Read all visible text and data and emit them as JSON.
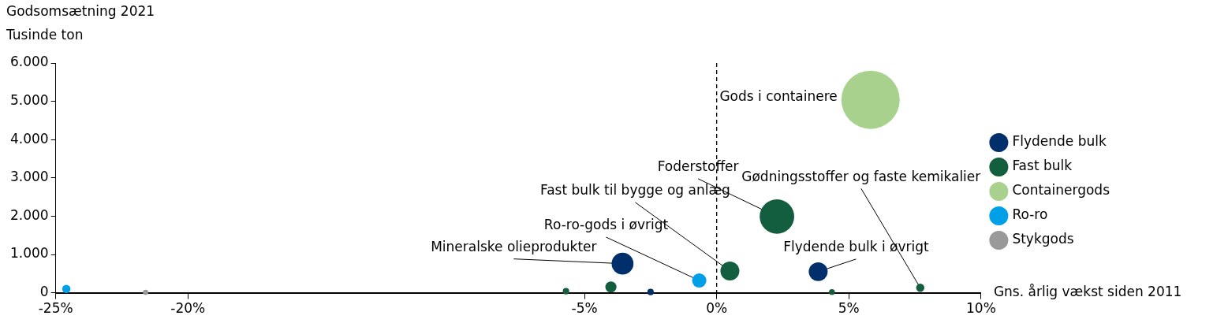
{
  "chart_data": {
    "type": "bubble",
    "title": "Godsomsætning 2021",
    "ylabel": "Tusinde ton",
    "xlabel": "Gns. årlig vækst siden 2011",
    "xlim": [
      -25,
      10
    ],
    "xticks": [
      {
        "value": -25,
        "label": "-25%"
      },
      {
        "value": -20,
        "label": "-20%"
      },
      {
        "value": -5,
        "label": "-5%"
      },
      {
        "value": 0,
        "label": "0%"
      },
      {
        "value": 5,
        "label": "5%"
      },
      {
        "value": 10,
        "label": "10%"
      }
    ],
    "ylim": [
      0,
      6000
    ],
    "yticks": [
      {
        "value": 0,
        "label": "0"
      },
      {
        "value": 1000,
        "label": "1.000"
      },
      {
        "value": 2000,
        "label": "2.000"
      },
      {
        "value": 3000,
        "label": "3.000"
      },
      {
        "value": 4000,
        "label": "4.000"
      },
      {
        "value": 5000,
        "label": "5.000"
      },
      {
        "value": 6000,
        "label": "6.000"
      }
    ],
    "grid": false,
    "legend": "right",
    "marker": "circle",
    "series": [
      {
        "name": "Flydende bulk",
        "color": "#002f6c",
        "x": [
          -3.56,
          -2.5,
          3.84
        ],
        "values": [
          760,
          20,
          550
        ],
        "sizes": [
          0.14,
          0.012,
          0.105
        ]
      },
      {
        "name": "Fast bulk",
        "color": "#135e3f",
        "x": [
          -5.7,
          -4.0,
          0.5,
          2.28,
          4.36,
          7.7
        ],
        "values": [
          40,
          150,
          570,
          1990,
          20,
          130
        ],
        "sizes": [
          0.012,
          0.036,
          0.105,
          0.35,
          0.01,
          0.02
        ]
      },
      {
        "name": "Containergods",
        "color": "#a9d18e",
        "x": [
          5.82
        ],
        "values": [
          5040
        ],
        "sizes": [
          1
        ]
      },
      {
        "name": "Ro-ro",
        "color": "#00a0e9",
        "x": [
          -24.6,
          -0.66
        ],
        "values": [
          100,
          320
        ],
        "sizes": [
          0.02,
          0.06
        ]
      },
      {
        "name": "Stykgods",
        "color": "#999999",
        "x": [
          -21.6
        ],
        "values": [
          10
        ],
        "sizes": [
          0.008
        ]
      }
    ],
    "ref_lines": [
      {
        "axis": "x",
        "value": 0,
        "color": "#000000",
        "line_style": "dashed"
      }
    ],
    "annotations": [
      {
        "text": "Gods i containere",
        "x": 5.82,
        "y": 5040
      },
      {
        "text": "Foderstoffer",
        "x": 2.28,
        "y": 1990
      },
      {
        "text": "Fast bulk til bygge og anlæg",
        "x": 0.5,
        "y": 570
      },
      {
        "text": "Gødningsstoffer og faste kemikalier",
        "x": 7.7,
        "y": 130
      },
      {
        "text": "Ro-ro-gods i øvrigt",
        "x": -0.66,
        "y": 320
      },
      {
        "text": "Mineralske olieprodukter",
        "x": -3.56,
        "y": 760
      },
      {
        "text": "Flydende bulk i øvrigt",
        "x": 3.84,
        "y": 550
      }
    ]
  }
}
